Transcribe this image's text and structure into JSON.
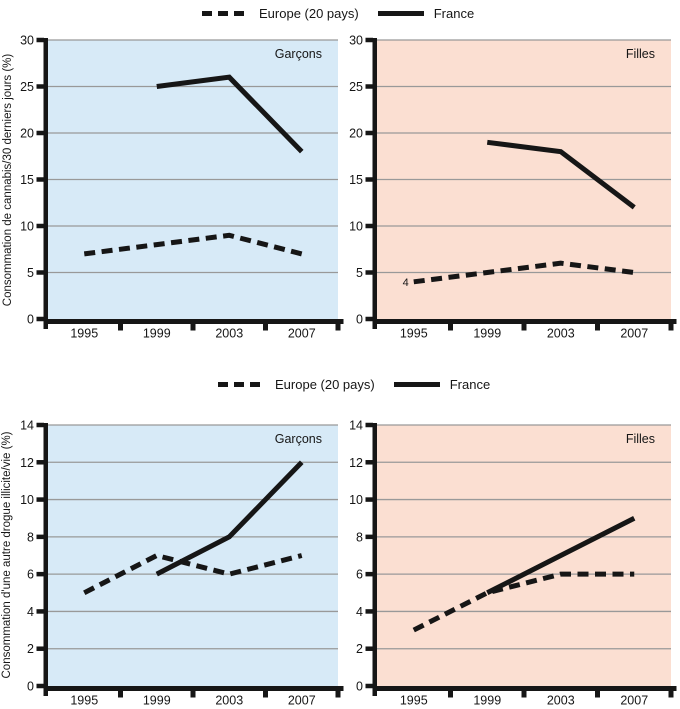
{
  "legend": {
    "europe": "Europe (20 pays)",
    "france": "France"
  },
  "ylabels": {
    "top": "Consommation de cannabis/30 derniers jours (%)",
    "bottom": "Consommation d'une autre drogue illicite/vie (%)"
  },
  "colors": {
    "boys_bg": "#d7eaf7",
    "girls_bg": "#fbdfd2",
    "gridline": "#999999",
    "line": "#161616"
  },
  "chart_data": [
    {
      "type": "line",
      "title": "Garçons",
      "measure": "Consommation de cannabis/30 derniers jours (%)",
      "background": "boys_bg",
      "categories": [
        "1995",
        "1999",
        "2003",
        "2007"
      ],
      "ylim": [
        0,
        30
      ],
      "ytick_step": 5,
      "grid": true,
      "series": [
        {
          "name": "France",
          "style": "solid",
          "values": [
            null,
            25,
            26,
            18
          ]
        },
        {
          "name": "Europe (20 pays)",
          "style": "dashed",
          "values": [
            7,
            8,
            9,
            7
          ]
        }
      ],
      "annotations": []
    },
    {
      "type": "line",
      "title": "Filles",
      "measure": "Consommation de cannabis/30 derniers jours (%)",
      "background": "girls_bg",
      "categories": [
        "1995",
        "1999",
        "2003",
        "2007"
      ],
      "ylim": [
        0,
        30
      ],
      "ytick_step": 5,
      "grid": true,
      "series": [
        {
          "name": "France",
          "style": "solid",
          "values": [
            null,
            19,
            18,
            12
          ]
        },
        {
          "name": "Europe (20 pays)",
          "style": "dashed",
          "values": [
            4,
            5,
            6,
            5
          ]
        }
      ],
      "annotations": [
        {
          "text": "4",
          "category_index": 0,
          "value": 4
        }
      ]
    },
    {
      "type": "line",
      "title": "Garçons",
      "measure": "Consommation d'une autre drogue illicite/vie (%)",
      "background": "boys_bg",
      "categories": [
        "1995",
        "1999",
        "2003",
        "2007"
      ],
      "ylim": [
        0,
        14
      ],
      "ytick_step": 2,
      "grid": true,
      "series": [
        {
          "name": "France",
          "style": "solid",
          "values": [
            null,
            6,
            8,
            12
          ]
        },
        {
          "name": "Europe (20 pays)",
          "style": "dashed",
          "values": [
            5,
            7,
            6,
            7
          ]
        }
      ],
      "annotations": []
    },
    {
      "type": "line",
      "title": "Filles",
      "measure": "Consommation d'une autre drogue illicite/vie (%)",
      "background": "girls_bg",
      "categories": [
        "1995",
        "1999",
        "2003",
        "2007"
      ],
      "ylim": [
        0,
        14
      ],
      "ytick_step": 2,
      "grid": true,
      "series": [
        {
          "name": "France",
          "style": "solid",
          "values": [
            null,
            5,
            7,
            9
          ]
        },
        {
          "name": "Europe (20 pays)",
          "style": "dashed",
          "values": [
            3,
            5,
            6,
            6
          ]
        }
      ],
      "annotations": []
    }
  ]
}
